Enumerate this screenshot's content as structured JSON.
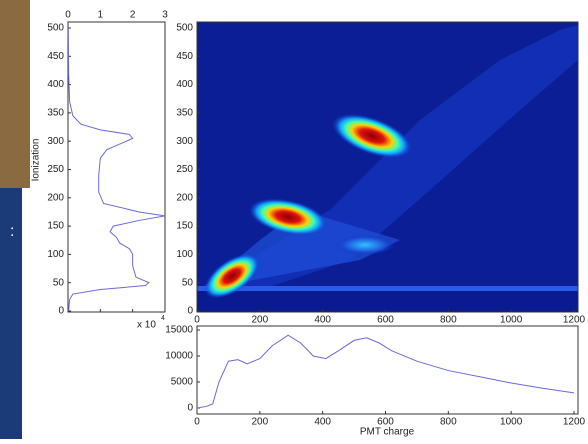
{
  "chart_data": [
    {
      "type": "line",
      "orientation": "vertical",
      "ylabel": "Ionization",
      "multiplier": "x 10",
      "multiplier_exponent": "4",
      "y": [
        0,
        20,
        30,
        38,
        45,
        50,
        60,
        80,
        100,
        110,
        120,
        130,
        140,
        150,
        160,
        168,
        175,
        190,
        210,
        240,
        270,
        285,
        295,
        305,
        312,
        320,
        330,
        345,
        370,
        420,
        500
      ],
      "values": [
        0.02,
        0.05,
        0.15,
        1.0,
        2.4,
        2.5,
        2.1,
        2.0,
        2.0,
        1.9,
        1.6,
        1.5,
        1.3,
        1.4,
        2.2,
        3.0,
        2.2,
        1.1,
        0.95,
        0.95,
        1.0,
        1.2,
        1.6,
        2.0,
        1.9,
        1.0,
        0.4,
        0.15,
        0.05,
        0.02,
        0.01
      ],
      "xlim": [
        0,
        3
      ],
      "xticks": [
        0,
        1,
        2,
        3
      ],
      "ylim": [
        0,
        500
      ],
      "yticks": [
        0,
        50,
        100,
        150,
        200,
        250,
        300,
        350,
        400,
        450,
        500
      ],
      "color": "#6a6ad8"
    },
    {
      "type": "heatmap",
      "xlim": [
        0,
        1200
      ],
      "xticks": [
        0,
        200,
        400,
        600,
        800,
        1000,
        1200
      ],
      "ylim": [
        0,
        500
      ],
      "yticks": [
        0,
        50,
        100,
        150,
        200,
        250,
        300,
        350,
        400,
        450,
        500
      ]
    },
    {
      "type": "line",
      "xlabel": "PMT charge",
      "x": [
        0,
        30,
        50,
        70,
        100,
        130,
        160,
        200,
        240,
        290,
        330,
        370,
        410,
        450,
        500,
        540,
        580,
        620,
        700,
        800,
        900,
        1000,
        1100,
        1200
      ],
      "values": [
        0,
        300,
        800,
        5000,
        9000,
        9300,
        8500,
        9500,
        12000,
        14000,
        12500,
        10000,
        9500,
        11000,
        13000,
        13500,
        12500,
        11000,
        9000,
        7200,
        6000,
        4800,
        3800,
        2900
      ],
      "xlim": [
        0,
        1200
      ],
      "xticks": [
        0,
        200,
        400,
        600,
        800,
        1000,
        1200
      ],
      "ylim": [
        0,
        15000
      ],
      "yticks": [
        0,
        5000,
        10000,
        15000
      ],
      "color": "#6a6ad8"
    }
  ]
}
